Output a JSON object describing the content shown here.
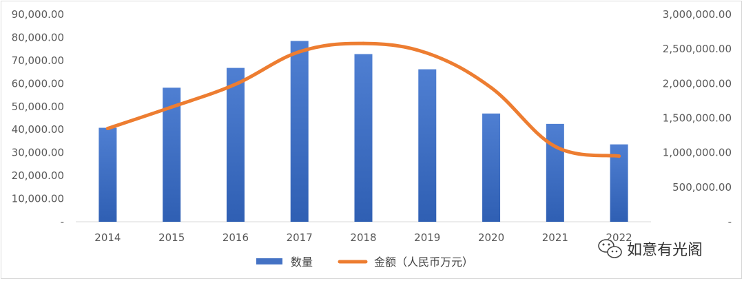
{
  "chart_data": {
    "type": "bar",
    "categories": [
      "2014",
      "2015",
      "2016",
      "2017",
      "2018",
      "2019",
      "2020",
      "2021",
      "2022"
    ],
    "series": [
      {
        "name": "数量",
        "type": "bar",
        "axis": "left",
        "color": "#4472c4",
        "values": [
          40800,
          58200,
          66800,
          78500,
          72800,
          66200,
          47000,
          42500,
          33600
        ]
      },
      {
        "name": "金额（人民币万元）",
        "type": "line",
        "axis": "right",
        "color": "#ed7d31",
        "values": [
          1350000,
          1660000,
          1990000,
          2460000,
          2580000,
          2440000,
          1940000,
          1090000,
          950000
        ]
      }
    ],
    "y_left": {
      "ylim": [
        0,
        90000
      ],
      "ticks": [
        {
          "value": 0,
          "label": "-"
        },
        {
          "value": 10000,
          "label": "10,000.00"
        },
        {
          "value": 20000,
          "label": "20,000.00"
        },
        {
          "value": 30000,
          "label": "30,000.00"
        },
        {
          "value": 40000,
          "label": "40,000.00"
        },
        {
          "value": 50000,
          "label": "50,000.00"
        },
        {
          "value": 60000,
          "label": "60,000.00"
        },
        {
          "value": 70000,
          "label": "70,000.00"
        },
        {
          "value": 80000,
          "label": "80,000.00"
        },
        {
          "value": 90000,
          "label": "90,000.00"
        }
      ]
    },
    "y_right": {
      "ylim": [
        0,
        3000000
      ],
      "ticks": [
        {
          "value": 0,
          "label": "-"
        },
        {
          "value": 500000,
          "label": "500,000.00"
        },
        {
          "value": 1000000,
          "label": "1,000,000.00"
        },
        {
          "value": 1500000,
          "label": "1,500,000.00"
        },
        {
          "value": 2000000,
          "label": "2,000,000.00"
        },
        {
          "value": 2500000,
          "label": "2,500,000.00"
        },
        {
          "value": 3000000,
          "label": "3,000,000.00"
        }
      ]
    },
    "grid": false,
    "legend": "bottom"
  },
  "watermark": {
    "text": "如意有光阁",
    "icon": "wechat-icon"
  }
}
